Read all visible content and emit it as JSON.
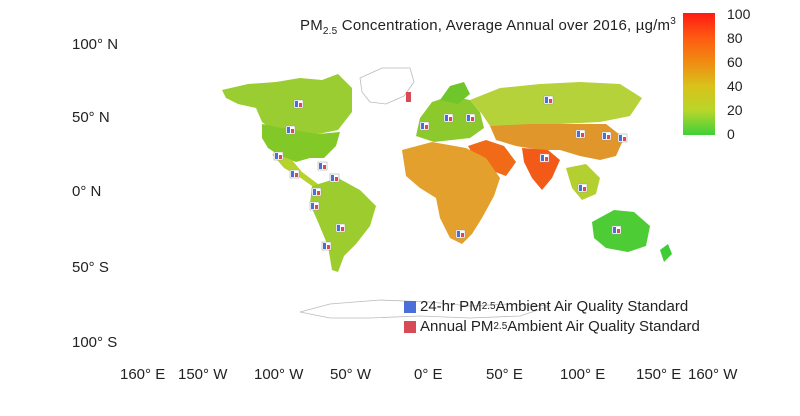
{
  "title": {
    "pre": "PM",
    "sub": "2.5",
    "mid": " Concentration, Average Annual over 2016, µg/m",
    "sup": "3"
  },
  "y_axis": [
    "100° N",
    "50° N",
    "0° N",
    "50° S",
    "100° S"
  ],
  "x_axis": [
    "160° E",
    "150° W",
    "100° W",
    "50° W",
    "0° E",
    "50° E",
    "100° E",
    "150° E",
    "160° W"
  ],
  "colorbar": {
    "ticks": [
      "100",
      "80",
      "60",
      "40",
      "20",
      "0"
    ],
    "min": 0,
    "max": 100
  },
  "legend": [
    {
      "pre": "24-hr PM",
      "sub": "2.5",
      "post": " Ambient Air Quality Standard",
      "color": "#4a6fd8"
    },
    {
      "pre": "Annual PM",
      "sub": "2.5",
      "post": " Ambient Air Quality Standard",
      "color": "#d84a55"
    }
  ]
}
